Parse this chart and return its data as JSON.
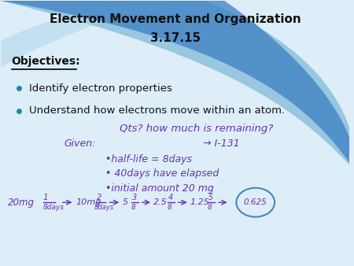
{
  "title_line1": "Electron Movement and Organization",
  "title_line2": "3.17.15",
  "objectives_label": "Objectives:",
  "bullet1": "Identify electron properties",
  "bullet2": "Understand how electrons move within an atom.",
  "title_color": "#111111",
  "objectives_color": "#111111",
  "bullet_color": "#2288aa",
  "hw_color": "#6633aa",
  "bg_color": "#ddeef8",
  "swoosh1_color": "#6aadcf",
  "swoosh2_color": "#3b7fc4",
  "arc_color": "#aad4ea",
  "circle_color": "#4488bb"
}
